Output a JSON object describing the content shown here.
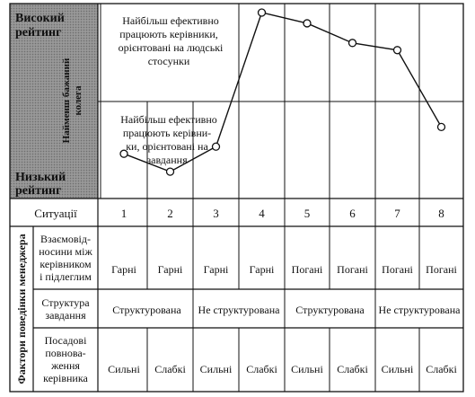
{
  "rating_axis": {
    "high": [
      "Високий",
      "рейтинг"
    ],
    "low": [
      "Низький",
      "рейтинг"
    ],
    "vertical": [
      "Найменш бажаний",
      "колега"
    ]
  },
  "zone_labels": {
    "relations": [
      "Найбільш ефективно",
      "працюють керівники,",
      "орієнтовані на людські",
      "стосунки"
    ],
    "task": [
      "Найбільш ефективно",
      "працюють керівни-",
      "ки, орієнтовані на",
      "завдання"
    ]
  },
  "side_label": "Фактори поведінки менеджера",
  "situations": {
    "label": "Ситуації",
    "values": [
      "1",
      "2",
      "3",
      "4",
      "5",
      "6",
      "7",
      "8"
    ]
  },
  "rows": {
    "relations": {
      "label": [
        "Взаємовід-",
        "носини між",
        "керівником",
        "і підлеглим"
      ],
      "values": [
        "Гарні",
        "Гарні",
        "Гарні",
        "Гарні",
        "Погані",
        "Погані",
        "Погані",
        "Погані"
      ]
    },
    "structure": {
      "label": [
        "Структура",
        "завдання"
      ],
      "groups": [
        "Структурована",
        "Не структурована",
        "Структурована",
        "Не структурована"
      ]
    },
    "power": {
      "label": [
        "Посадові",
        "повнова-",
        "ження",
        "керівника"
      ],
      "values": [
        "Сильні",
        "Слабкі",
        "Сильні",
        "Слабкі",
        "Сильні",
        "Слабкі",
        "Сильні",
        "Слабкі"
      ]
    }
  },
  "chart_data": {
    "type": "line",
    "categories": [
      "1",
      "2",
      "3",
      "4",
      "5",
      "6",
      "7",
      "8"
    ],
    "values": [
      0.21,
      0.11,
      0.25,
      1.0,
      0.94,
      0.83,
      0.79,
      0.36
    ],
    "ylim": [
      0,
      1
    ]
  }
}
